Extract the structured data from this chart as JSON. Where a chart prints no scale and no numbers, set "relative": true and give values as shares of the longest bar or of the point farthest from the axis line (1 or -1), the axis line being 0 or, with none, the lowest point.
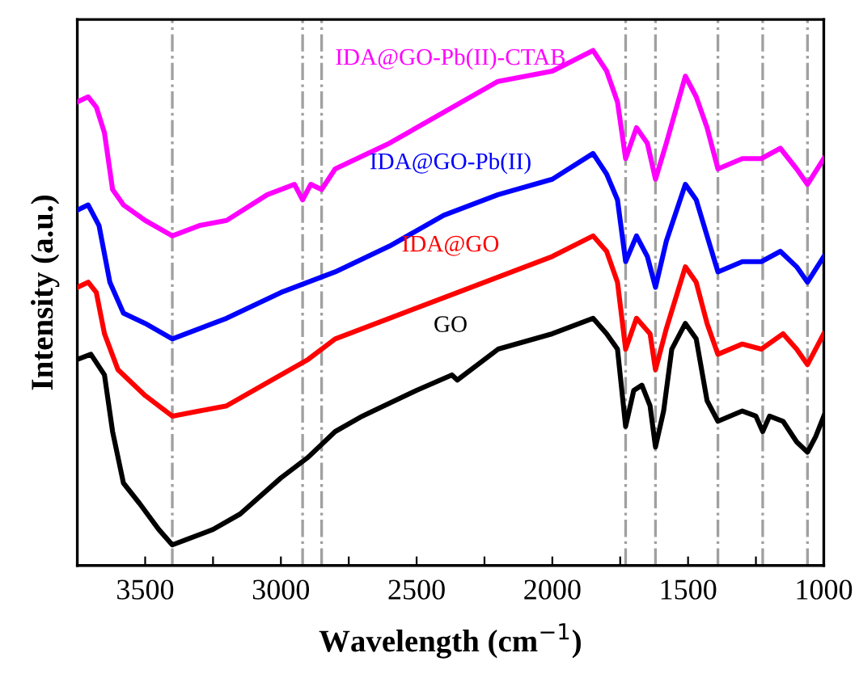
{
  "chart_data": {
    "type": "line",
    "relative": true,
    "xlabel": "Wavelength (cm$^{−1}$)",
    "ylabel": "Intensity (a.u.)",
    "xlim": [
      3750,
      1000
    ],
    "xticks": [
      3500,
      {
        "value": 3250,
        "label": null
      },
      3000,
      {
        "value": 2750,
        "label": null
      },
      2500,
      {
        "value": 2250,
        "label": null
      },
      2000,
      {
        "value": 1750,
        "label": null
      },
      1500,
      {
        "value": 1250,
        "label": null
      },
      1000
    ],
    "grid": false,
    "legend": false,
    "marker": "none",
    "line_style": "solid",
    "series": [
      {
        "name": "GO",
        "color": "#000000",
        "x": [
          3750,
          3700,
          3650,
          3620,
          3580,
          3520,
          3450,
          3400,
          3350,
          3250,
          3150,
          3000,
          2900,
          2800,
          2700,
          2500,
          2370,
          2350,
          2200,
          2000,
          1850,
          1800,
          1760,
          1730,
          1700,
          1670,
          1640,
          1620,
          1590,
          1560,
          1510,
          1470,
          1430,
          1390,
          1300,
          1250,
          1225,
          1200,
          1150,
          1100,
          1060,
          1030,
          1000
        ],
        "values": [
          0.4,
          0.41,
          0.37,
          0.26,
          0.16,
          0.12,
          0.07,
          0.04,
          0.05,
          0.07,
          0.1,
          0.17,
          0.21,
          0.26,
          0.29,
          0.34,
          0.37,
          0.36,
          0.42,
          0.45,
          0.48,
          0.45,
          0.42,
          0.27,
          0.34,
          0.35,
          0.31,
          0.23,
          0.3,
          0.42,
          0.47,
          0.44,
          0.32,
          0.28,
          0.3,
          0.29,
          0.26,
          0.29,
          0.28,
          0.24,
          0.22,
          0.25,
          0.29
        ]
      },
      {
        "name": "IDA@GO",
        "color": "#ff0000",
        "x": [
          3750,
          3710,
          3680,
          3650,
          3600,
          3500,
          3400,
          3300,
          3200,
          3000,
          2900,
          2800,
          2600,
          2400,
          2200,
          2000,
          1850,
          1800,
          1760,
          1730,
          1690,
          1640,
          1620,
          1580,
          1510,
          1470,
          1430,
          1390,
          1300,
          1230,
          1150,
          1100,
          1060,
          1000
        ],
        "values": [
          0.54,
          0.55,
          0.53,
          0.45,
          0.38,
          0.33,
          0.29,
          0.3,
          0.31,
          0.37,
          0.4,
          0.44,
          0.48,
          0.52,
          0.56,
          0.6,
          0.64,
          0.61,
          0.55,
          0.42,
          0.48,
          0.45,
          0.38,
          0.46,
          0.58,
          0.55,
          0.47,
          0.41,
          0.43,
          0.42,
          0.45,
          0.42,
          0.39,
          0.45
        ]
      },
      {
        "name": "IDA@GO-Pb(II)",
        "color": "#0000ff",
        "x": [
          3750,
          3710,
          3670,
          3630,
          3580,
          3500,
          3400,
          3300,
          3200,
          3000,
          2900,
          2800,
          2600,
          2400,
          2200,
          2000,
          1850,
          1800,
          1760,
          1730,
          1690,
          1650,
          1620,
          1580,
          1510,
          1470,
          1430,
          1390,
          1300,
          1230,
          1160,
          1100,
          1060,
          1000
        ],
        "values": [
          0.69,
          0.7,
          0.66,
          0.55,
          0.49,
          0.47,
          0.44,
          0.46,
          0.48,
          0.53,
          0.55,
          0.57,
          0.62,
          0.68,
          0.72,
          0.75,
          0.8,
          0.76,
          0.71,
          0.59,
          0.64,
          0.6,
          0.54,
          0.63,
          0.74,
          0.71,
          0.64,
          0.57,
          0.59,
          0.59,
          0.61,
          0.58,
          0.55,
          0.6
        ]
      },
      {
        "name": "IDA@GO-Pb(II)-CTAB",
        "color": "#ff00ff",
        "x": [
          3750,
          3710,
          3680,
          3650,
          3620,
          3580,
          3500,
          3400,
          3300,
          3200,
          3050,
          2950,
          2920,
          2890,
          2850,
          2800,
          2600,
          2400,
          2200,
          2000,
          1850,
          1800,
          1760,
          1730,
          1690,
          1650,
          1620,
          1580,
          1510,
          1470,
          1430,
          1390,
          1300,
          1230,
          1160,
          1100,
          1060,
          1000
        ],
        "values": [
          0.9,
          0.91,
          0.89,
          0.84,
          0.73,
          0.7,
          0.67,
          0.64,
          0.66,
          0.67,
          0.72,
          0.74,
          0.71,
          0.74,
          0.73,
          0.77,
          0.82,
          0.88,
          0.94,
          0.96,
          1,
          0.96,
          0.9,
          0.79,
          0.85,
          0.82,
          0.75,
          0.82,
          0.95,
          0.91,
          0.85,
          0.77,
          0.79,
          0.79,
          0.81,
          0.77,
          0.74,
          0.79
        ]
      }
    ],
    "ref_lines": [
      {
        "axis": "x",
        "value": 3400,
        "color": "#a0a0a0",
        "line_style": "dashed"
      },
      {
        "axis": "x",
        "value": 2920,
        "color": "#a0a0a0",
        "line_style": "dashed"
      },
      {
        "axis": "x",
        "value": 2850,
        "color": "#a0a0a0",
        "line_style": "dashed"
      },
      {
        "axis": "x",
        "value": 1730,
        "color": "#a0a0a0",
        "line_style": "dashed"
      },
      {
        "axis": "x",
        "value": 1620,
        "color": "#a0a0a0",
        "line_style": "dashed"
      },
      {
        "axis": "x",
        "value": 1390,
        "color": "#a0a0a0",
        "line_style": "dashed"
      },
      {
        "axis": "x",
        "value": 1225,
        "color": "#a0a0a0",
        "line_style": "dashed"
      },
      {
        "axis": "x",
        "value": 1060,
        "color": "#a0a0a0",
        "line_style": "dashed"
      }
    ]
  }
}
